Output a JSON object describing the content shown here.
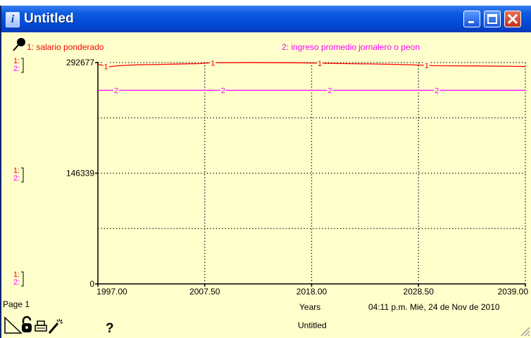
{
  "window": {
    "title": "Untitled",
    "buttons": [
      "minimize",
      "maximize",
      "close"
    ]
  },
  "legend": {
    "series1_label": "1: salario ponderado",
    "series2_label": "2: ingreso promedio jornalero o peon",
    "pin_icon": "pushpin-icon"
  },
  "axis_markers": [
    {
      "one": "1:",
      "two": "2:"
    },
    {
      "one": "1:",
      "two": "2:"
    },
    {
      "one": "1:",
      "two": "2:"
    }
  ],
  "footer": {
    "page": "Page 1",
    "xlabel": "Years",
    "timestamp": "04:11 p.m.   Mié, 24 de Nov de 2010",
    "model_name": "Untitled",
    "help": "?"
  },
  "colors": {
    "series1": "#ff0000",
    "series2": "#ff00ff",
    "background": "#ffffcc",
    "titlebar": "#0149d4"
  },
  "chart_data": {
    "type": "line",
    "xlabel": "Years",
    "ylabel": "",
    "xlim": [
      1997,
      2039
    ],
    "ylim": [
      0,
      292677
    ],
    "x_ticks": [
      "1997.00",
      "2007.50",
      "2018.00",
      "2028.50",
      "2039.00"
    ],
    "y_ticks": [
      "0",
      "146339",
      "292677"
    ],
    "grid": "dotted",
    "series": [
      {
        "name": "1: salario ponderado",
        "marker": "1",
        "x": [
          1997,
          1998,
          1999,
          2001,
          2004,
          2007,
          2008,
          2012,
          2016,
          2018,
          2020,
          2024,
          2027,
          2028.5,
          2030,
          2034,
          2038,
          2039
        ],
        "y": [
          290500,
          287000,
          288500,
          289800,
          290500,
          291300,
          292300,
          292600,
          292400,
          292100,
          291500,
          290800,
          290000,
          289300,
          288500,
          288200,
          287700,
          287400
        ]
      },
      {
        "name": "2: ingreso promedio jornalero o peon",
        "marker": "2",
        "x": [
          1997,
          2039
        ],
        "y": [
          256000,
          256000
        ]
      }
    ]
  }
}
